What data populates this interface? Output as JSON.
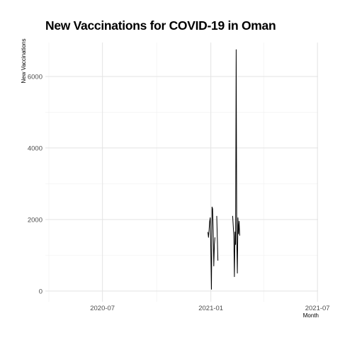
{
  "chart_data": {
    "type": "line",
    "title": "New Vaccinations for COVID-19 in Oman",
    "xlabel": "Month",
    "ylabel": "New Vaccinations",
    "x_axis_type": "date",
    "xlim": [
      "2020-03-26",
      "2021-07-02"
    ],
    "ylim": [
      -300,
      6950
    ],
    "x_ticks": [
      {
        "date": "2020-07-01",
        "label": "2020-07"
      },
      {
        "date": "2021-01-01",
        "label": "2021-01"
      },
      {
        "date": "2021-07-01",
        "label": "2021-07"
      }
    ],
    "x_minor_ticks": [
      "2020-04-01",
      "2020-10-01",
      "2021-04-01"
    ],
    "y_ticks": [
      0,
      2000,
      4000,
      6000
    ],
    "y_minor_ticks": [
      1000,
      3000,
      5000
    ],
    "grid": true,
    "line_color": "#000000",
    "series": [
      {
        "segments": [
          [
            {
              "x": "2020-12-27",
              "y": 1650
            },
            {
              "x": "2020-12-28",
              "y": 1500
            },
            {
              "x": "2020-12-29",
              "y": 1700
            },
            {
              "x": "2020-12-30",
              "y": 1950
            },
            {
              "x": "2020-12-31",
              "y": 2050
            },
            {
              "x": "2021-01-01",
              "y": 1100
            },
            {
              "x": "2021-01-02",
              "y": 50
            },
            {
              "x": "2021-01-03",
              "y": 2350
            },
            {
              "x": "2021-01-04",
              "y": 2300
            },
            {
              "x": "2021-01-05",
              "y": 1700
            },
            {
              "x": "2021-01-06",
              "y": 700
            },
            {
              "x": "2021-01-07",
              "y": 1300
            },
            {
              "x": "2021-01-08",
              "y": 1500
            }
          ],
          [
            {
              "x": "2021-01-11",
              "y": 2100
            },
            {
              "x": "2021-01-13",
              "y": 850
            }
          ],
          [
            {
              "x": "2021-02-07",
              "y": 2100
            },
            {
              "x": "2021-02-09",
              "y": 1550
            },
            {
              "x": "2021-02-10",
              "y": 400
            },
            {
              "x": "2021-02-11",
              "y": 1650
            },
            {
              "x": "2021-02-12",
              "y": 1300
            },
            {
              "x": "2021-02-13",
              "y": 6750
            },
            {
              "x": "2021-02-14",
              "y": 1400
            },
            {
              "x": "2021-02-15",
              "y": 500
            },
            {
              "x": "2021-02-16",
              "y": 2050
            },
            {
              "x": "2021-02-17",
              "y": 1600
            },
            {
              "x": "2021-02-18",
              "y": 1950
            },
            {
              "x": "2021-02-19",
              "y": 1550
            }
          ]
        ]
      }
    ]
  }
}
